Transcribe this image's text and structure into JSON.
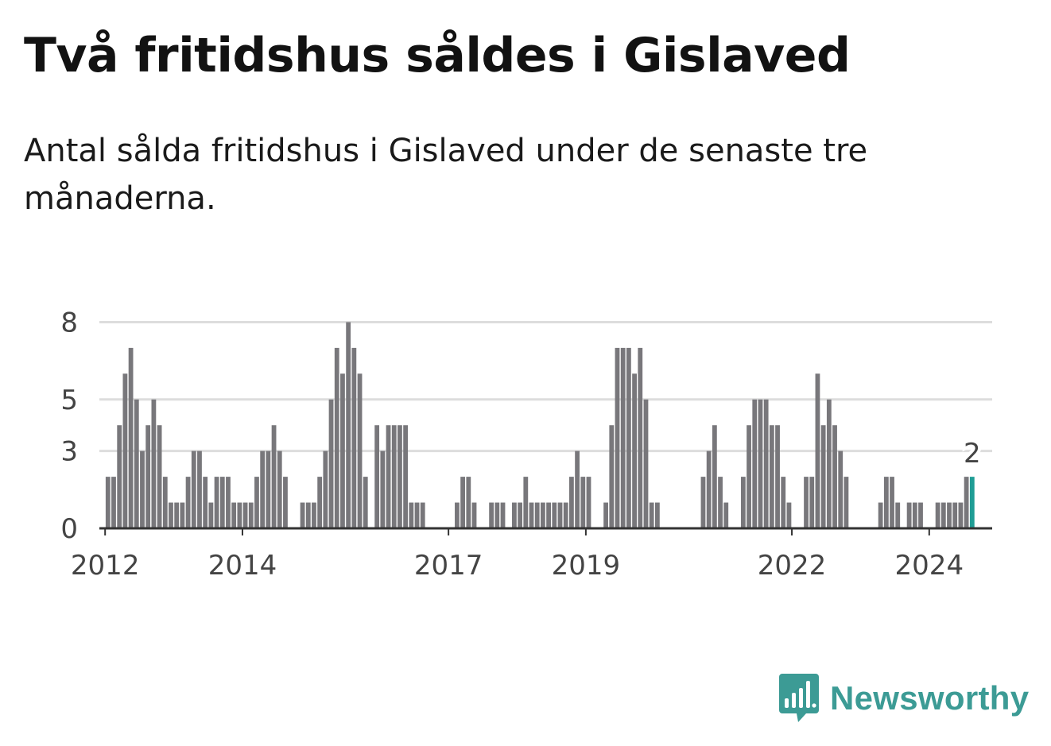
{
  "title": "Två fritidshus såldes i Gislaved",
  "subtitle": "Antal sålda fritidshus i Gislaved under de senaste tre månaderna.",
  "brand": {
    "name": "Newsworthy",
    "color": "#3c9b95",
    "icon": "newsworthy-bar-chart-icon"
  },
  "chart_data": {
    "type": "bar",
    "title": "",
    "xlabel": "",
    "ylabel": "",
    "ylim": [
      0,
      9
    ],
    "yticks": [
      0,
      3,
      5,
      8
    ],
    "x_start": "2011-12",
    "x_end": "2024-12",
    "xticks": [
      "2012",
      "2014",
      "2017",
      "2019",
      "2022",
      "2024"
    ],
    "colors": {
      "bar": "#78777b",
      "highlight": "#1f9d95",
      "grid": "#dddddd",
      "axis": "#333333"
    },
    "annotation": {
      "date": "2024-08",
      "text": "2"
    },
    "series": [
      {
        "points": [
          [
            "2012-01",
            2
          ],
          [
            "2012-02",
            2
          ],
          [
            "2012-03",
            4
          ],
          [
            "2012-04",
            6
          ],
          [
            "2012-05",
            7
          ],
          [
            "2012-06",
            5
          ],
          [
            "2012-07",
            3
          ],
          [
            "2012-08",
            4
          ],
          [
            "2012-09",
            5
          ],
          [
            "2012-10",
            4
          ],
          [
            "2012-11",
            2
          ],
          [
            "2012-12",
            1
          ],
          [
            "2013-01",
            1
          ],
          [
            "2013-02",
            1
          ],
          [
            "2013-03",
            2
          ],
          [
            "2013-04",
            3
          ],
          [
            "2013-05",
            3
          ],
          [
            "2013-06",
            2
          ],
          [
            "2013-07",
            1
          ],
          [
            "2013-08",
            2
          ],
          [
            "2013-09",
            2
          ],
          [
            "2013-10",
            2
          ],
          [
            "2013-11",
            1
          ],
          [
            "2013-12",
            1
          ],
          [
            "2014-01",
            1
          ],
          [
            "2014-02",
            1
          ],
          [
            "2014-03",
            2
          ],
          [
            "2014-04",
            3
          ],
          [
            "2014-05",
            3
          ],
          [
            "2014-06",
            4
          ],
          [
            "2014-07",
            3
          ],
          [
            "2014-08",
            2
          ],
          [
            "2014-11",
            1
          ],
          [
            "2014-12",
            1
          ],
          [
            "2015-01",
            1
          ],
          [
            "2015-02",
            2
          ],
          [
            "2015-03",
            3
          ],
          [
            "2015-04",
            5
          ],
          [
            "2015-05",
            7
          ],
          [
            "2015-06",
            6
          ],
          [
            "2015-07",
            8
          ],
          [
            "2015-08",
            7
          ],
          [
            "2015-09",
            6
          ],
          [
            "2015-10",
            2
          ],
          [
            "2015-12",
            4
          ],
          [
            "2016-01",
            3
          ],
          [
            "2016-02",
            4
          ],
          [
            "2016-03",
            4
          ],
          [
            "2016-04",
            4
          ],
          [
            "2016-05",
            4
          ],
          [
            "2016-06",
            1
          ],
          [
            "2016-07",
            1
          ],
          [
            "2016-08",
            1
          ],
          [
            "2017-02",
            1
          ],
          [
            "2017-03",
            2
          ],
          [
            "2017-04",
            2
          ],
          [
            "2017-05",
            1
          ],
          [
            "2017-08",
            1
          ],
          [
            "2017-09",
            1
          ],
          [
            "2017-10",
            1
          ],
          [
            "2017-12",
            1
          ],
          [
            "2018-01",
            1
          ],
          [
            "2018-02",
            2
          ],
          [
            "2018-03",
            1
          ],
          [
            "2018-04",
            1
          ],
          [
            "2018-05",
            1
          ],
          [
            "2018-06",
            1
          ],
          [
            "2018-07",
            1
          ],
          [
            "2018-08",
            1
          ],
          [
            "2018-09",
            1
          ],
          [
            "2018-10",
            2
          ],
          [
            "2018-11",
            3
          ],
          [
            "2018-12",
            2
          ],
          [
            "2019-01",
            2
          ],
          [
            "2019-04",
            1
          ],
          [
            "2019-05",
            4
          ],
          [
            "2019-06",
            7
          ],
          [
            "2019-07",
            7
          ],
          [
            "2019-08",
            7
          ],
          [
            "2019-09",
            6
          ],
          [
            "2019-10",
            7
          ],
          [
            "2019-11",
            5
          ],
          [
            "2019-12",
            1
          ],
          [
            "2020-01",
            1
          ],
          [
            "2020-09",
            2
          ],
          [
            "2020-10",
            3
          ],
          [
            "2020-11",
            4
          ],
          [
            "2020-12",
            2
          ],
          [
            "2021-01",
            1
          ],
          [
            "2021-04",
            2
          ],
          [
            "2021-05",
            4
          ],
          [
            "2021-06",
            5
          ],
          [
            "2021-07",
            5
          ],
          [
            "2021-08",
            5
          ],
          [
            "2021-09",
            4
          ],
          [
            "2021-10",
            4
          ],
          [
            "2021-11",
            2
          ],
          [
            "2021-12",
            1
          ],
          [
            "2022-03",
            2
          ],
          [
            "2022-04",
            2
          ],
          [
            "2022-05",
            6
          ],
          [
            "2022-06",
            4
          ],
          [
            "2022-07",
            5
          ],
          [
            "2022-08",
            4
          ],
          [
            "2022-09",
            3
          ],
          [
            "2022-10",
            2
          ],
          [
            "2023-04",
            1
          ],
          [
            "2023-05",
            2
          ],
          [
            "2023-06",
            2
          ],
          [
            "2023-07",
            1
          ],
          [
            "2023-09",
            1
          ],
          [
            "2023-10",
            1
          ],
          [
            "2023-11",
            1
          ],
          [
            "2024-02",
            1
          ],
          [
            "2024-03",
            1
          ],
          [
            "2024-04",
            1
          ],
          [
            "2024-05",
            1
          ],
          [
            "2024-06",
            1
          ],
          [
            "2024-07",
            2
          ],
          [
            "2024-08",
            2
          ]
        ]
      }
    ]
  }
}
